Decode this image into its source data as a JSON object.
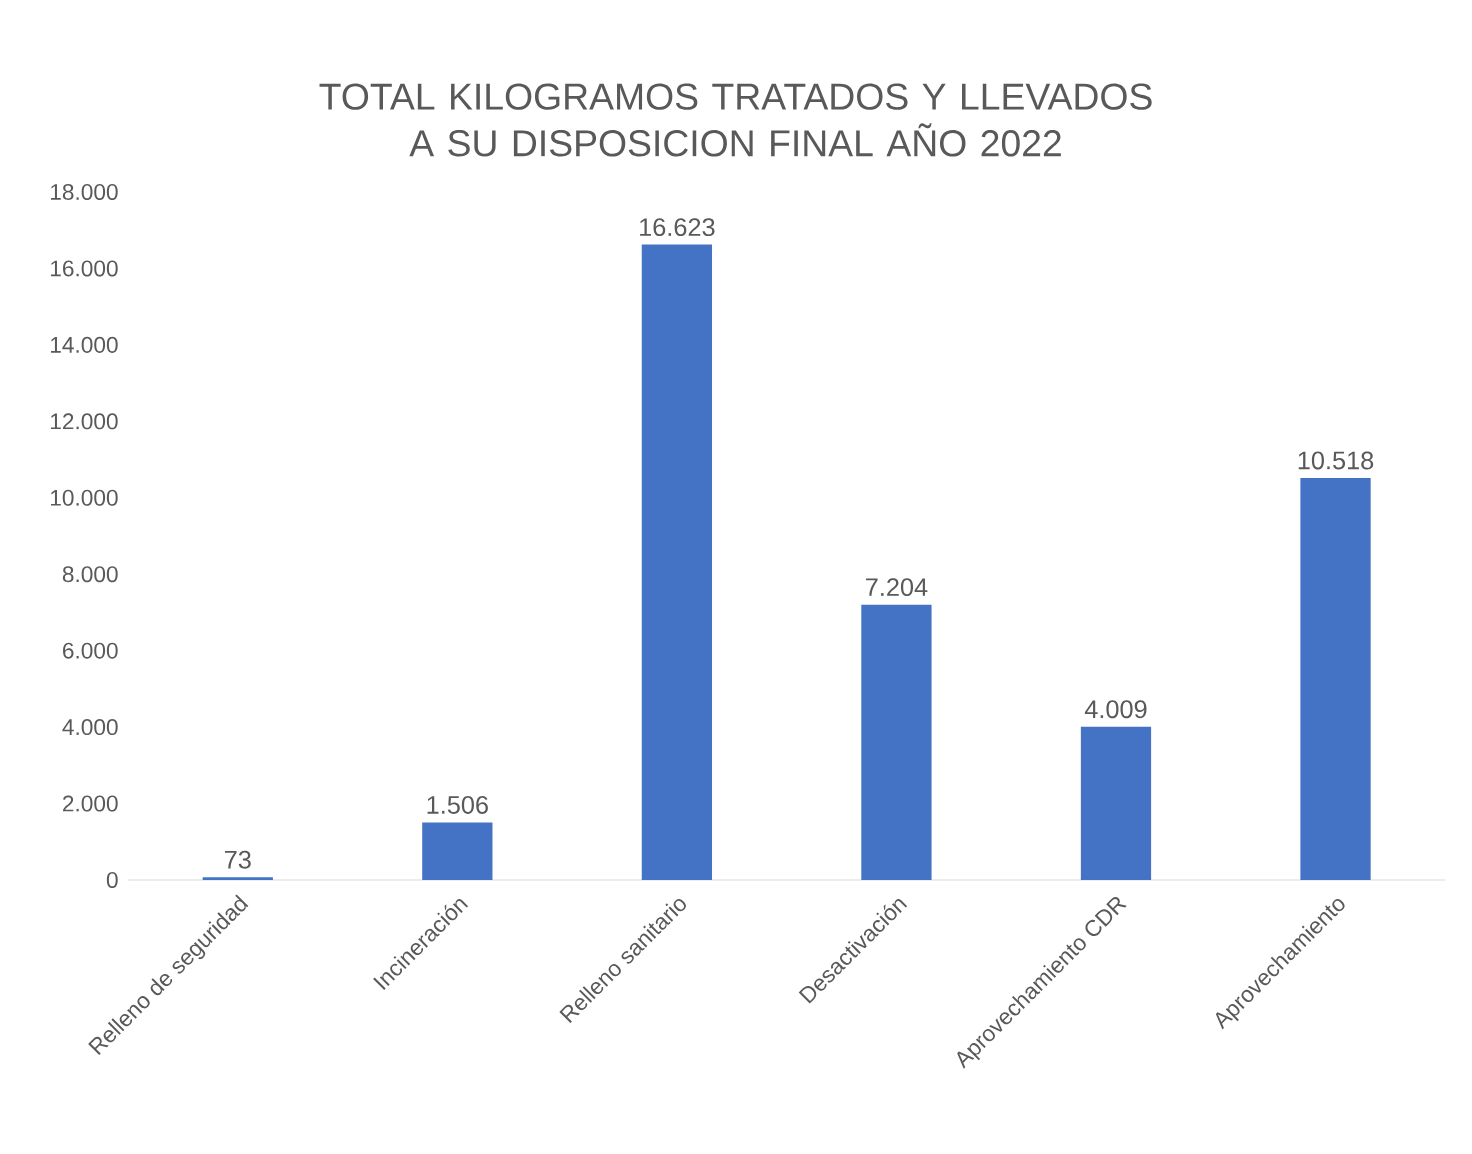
{
  "chart_data": {
    "type": "bar",
    "title": "TOTAL KILOGRAMOS TRATADOS Y LLEVADOS A SU DISPOSICION FINAL AÑO 2022",
    "categories": [
      "Relleno de seguridad",
      "Incineración",
      "Relleno sanitario",
      "Desactivación",
      "Aprovechamiento CDR",
      "Aprovechamiento"
    ],
    "values": [
      73,
      1506,
      16623,
      7204,
      4009,
      10518
    ],
    "value_labels": [
      "73",
      "1.506",
      "16.623",
      "7.204",
      "4.009",
      "10.518"
    ],
    "color": "#4472c4",
    "ylim": [
      0,
      18000
    ],
    "yticks": [
      0,
      {
        "value": 2000,
        "label": "2.000"
      },
      {
        "value": 4000,
        "label": "4.000"
      },
      {
        "value": 6000,
        "label": "6.000"
      },
      {
        "value": 8000,
        "label": "8.000"
      },
      {
        "value": 10000,
        "label": "10.000"
      },
      {
        "value": 12000,
        "label": "12.000"
      },
      {
        "value": 14000,
        "label": "14.000"
      },
      {
        "value": 16000,
        "label": "16.000"
      },
      {
        "value": 18000,
        "label": "18.000"
      }
    ]
  }
}
